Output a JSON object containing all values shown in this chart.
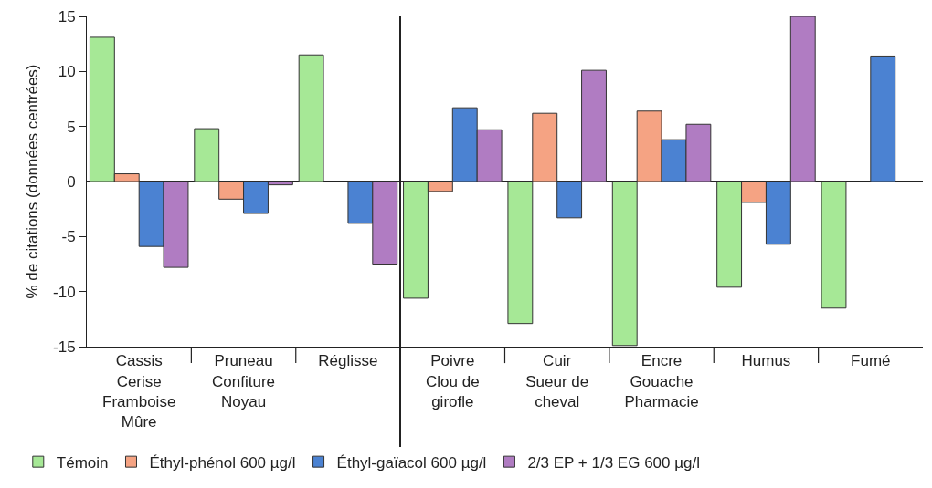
{
  "chart_data": {
    "type": "bar",
    "ylabel": "% de citations (données centrées)",
    "categories": [
      "Cassis\nCerise\nFramboise\nMûre",
      "Pruneau\nConfiture\nNoyau",
      "Réglisse",
      "Poivre\nClou de\ngirofle",
      "Cuir\nSueur de\ncheval",
      "Encre\nGouache\nPharmacie",
      "Humus",
      "Fumé"
    ],
    "series": [
      {
        "name": "Témoin",
        "color": "#a6e896",
        "values": [
          13.1,
          4.8,
          11.5,
          -10.6,
          -12.9,
          -14.9,
          -9.6,
          -11.5
        ]
      },
      {
        "name": "Éthyl-phénol 600 µg/l",
        "color": "#f5a383",
        "values": [
          0.7,
          -1.6,
          null,
          -0.9,
          6.2,
          6.4,
          -1.9,
          null
        ]
      },
      {
        "name": "Éthyl-gaïacol 600 µg/l",
        "color": "#4b82d2",
        "values": [
          -5.9,
          -2.9,
          -3.8,
          6.7,
          -3.3,
          3.8,
          -5.7,
          11.4
        ]
      },
      {
        "name": "2/3 EP + 1/3 EG 600 µg/l",
        "color": "#b07cc2",
        "values": [
          -7.8,
          -0.3,
          -7.5,
          4.7,
          10.1,
          5.2,
          15,
          null
        ]
      }
    ],
    "ylim": [
      -15,
      15
    ],
    "yticks": [
      -15,
      -10,
      -5,
      0,
      5,
      10,
      15
    ],
    "legend": "bottom left"
  }
}
